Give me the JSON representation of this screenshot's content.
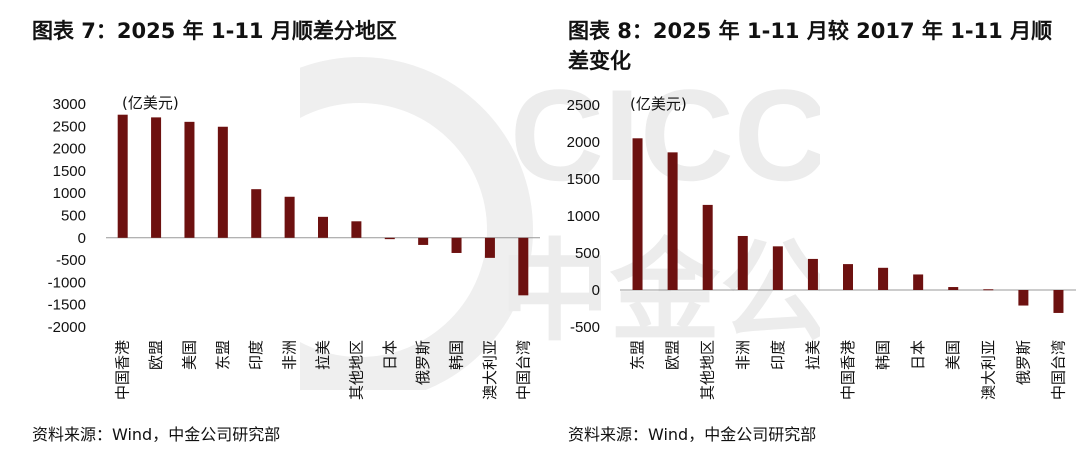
{
  "watermark": {
    "text": "CICC 中金公司",
    "color": "#e9e9e9"
  },
  "colors": {
    "bar": "#6d1110",
    "axis": "#999999",
    "text": "#111111"
  },
  "chart_data": [
    {
      "type": "bar",
      "title": "图表 7：2025 年 1-11 月顺差分地区",
      "unit_label": "(亿美元)",
      "categories": [
        "中国香港",
        "欧盟",
        "美国",
        "东盟",
        "印度",
        "非洲",
        "拉美",
        "其他地区",
        "日本",
        "俄罗斯",
        "韩国",
        "澳大利亚",
        "中国台湾"
      ],
      "values": [
        2760,
        2700,
        2600,
        2490,
        1090,
        920,
        470,
        370,
        -30,
        -160,
        -340,
        -450,
        -1290
      ],
      "ylim": [
        -2000,
        3000
      ],
      "yticks": [
        -2000,
        -1500,
        -1000,
        -500,
        0,
        500,
        1000,
        1500,
        2000,
        2500,
        3000
      ],
      "source": "资料来源：Wind，中金公司研究部"
    },
    {
      "type": "bar",
      "title": "图表 8：2025 年 1-11 月较 2017 年 1-11 月顺差变化",
      "unit_label": "(亿美元)",
      "categories": [
        "东盟",
        "欧盟",
        "其他地区",
        "非洲",
        "印度",
        "拉美",
        "中国香港",
        "韩国",
        "日本",
        "美国",
        "澳大利亚",
        "俄罗斯",
        "中国台湾"
      ],
      "values": [
        2050,
        1860,
        1150,
        730,
        590,
        420,
        350,
        300,
        210,
        40,
        10,
        -210,
        -310
      ],
      "ylim": [
        -500,
        2500
      ],
      "yticks": [
        -500,
        0,
        500,
        1000,
        1500,
        2000,
        2500
      ],
      "source": "资料来源：Wind，中金公司研究部"
    }
  ]
}
